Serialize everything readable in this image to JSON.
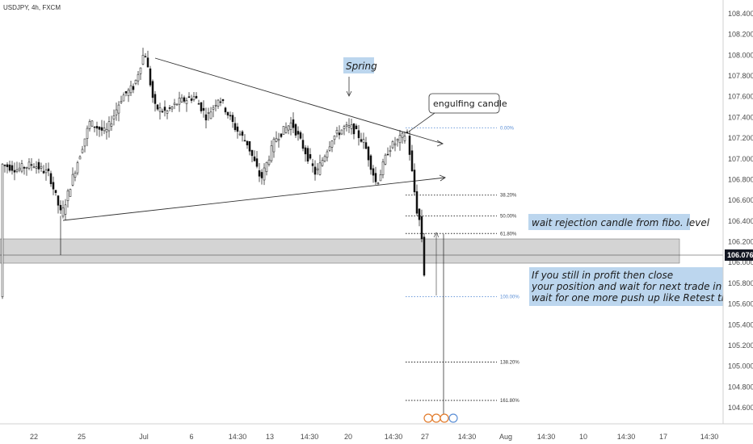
{
  "header": {
    "symbol_line": "USDJPY, 4h, FXCM"
  },
  "price_axis": {
    "labels": [
      "108.400",
      "108.200",
      "108.000",
      "107.800",
      "107.600",
      "107.400",
      "107.200",
      "107.000",
      "106.800",
      "106.600",
      "106.400",
      "106.200",
      "106.000",
      "105.800",
      "105.600",
      "105.400",
      "105.200",
      "105.000",
      "104.800",
      "104.600"
    ],
    "current_price": "106.076"
  },
  "time_axis": {
    "labels": [
      "22",
      "25",
      "Jul",
      "6",
      "14:30",
      "13",
      "14:30",
      "20",
      "14:30",
      "27",
      "14:30",
      "Aug",
      "14:30",
      "10",
      "14:30",
      "17",
      "14:30"
    ]
  },
  "fib_levels": [
    {
      "label": "0.00%",
      "price": 107.3
    },
    {
      "label": "38.20%",
      "price": 106.65
    },
    {
      "label": "50.00%",
      "price": 106.45
    },
    {
      "label": "61.80%",
      "price": 106.28
    },
    {
      "label": "100.00%",
      "price": 105.67
    },
    {
      "label": "138.20%",
      "price": 105.04
    },
    {
      "label": "161.80%",
      "price": 104.67
    }
  ],
  "annotations": {
    "spring": "Spring",
    "engulfing": "engulfing candle",
    "wait_rejection": "wait rejection candle from fibo. level",
    "profit_lines": [
      "If you still in profit then close",
      " your position and wait for next trade in USDJPY",
      "  wait for one more push up like Retest then sell"
    ]
  },
  "chart_data": {
    "type": "candlestick",
    "symbol": "USDJPY",
    "timeframe": "4h",
    "source": "FXCM",
    "ylim": [
      104.5,
      108.5
    ],
    "support_zone": [
      106.0,
      106.25
    ],
    "current_price": 106.076,
    "trendlines": [
      {
        "name": "upper",
        "from_price": 107.98,
        "to_price": 107.2
      },
      {
        "name": "lower",
        "from_price": 106.4,
        "to_price": 106.82
      }
    ]
  },
  "colors": {
    "bull": "#111111",
    "bear": "#111111",
    "zone": "#d4d4d4",
    "note_bg": "#bcd6ee",
    "fib_zero": "#5b8fd6",
    "axis_label": "#4a4a4a",
    "price_tag": "#131722"
  }
}
